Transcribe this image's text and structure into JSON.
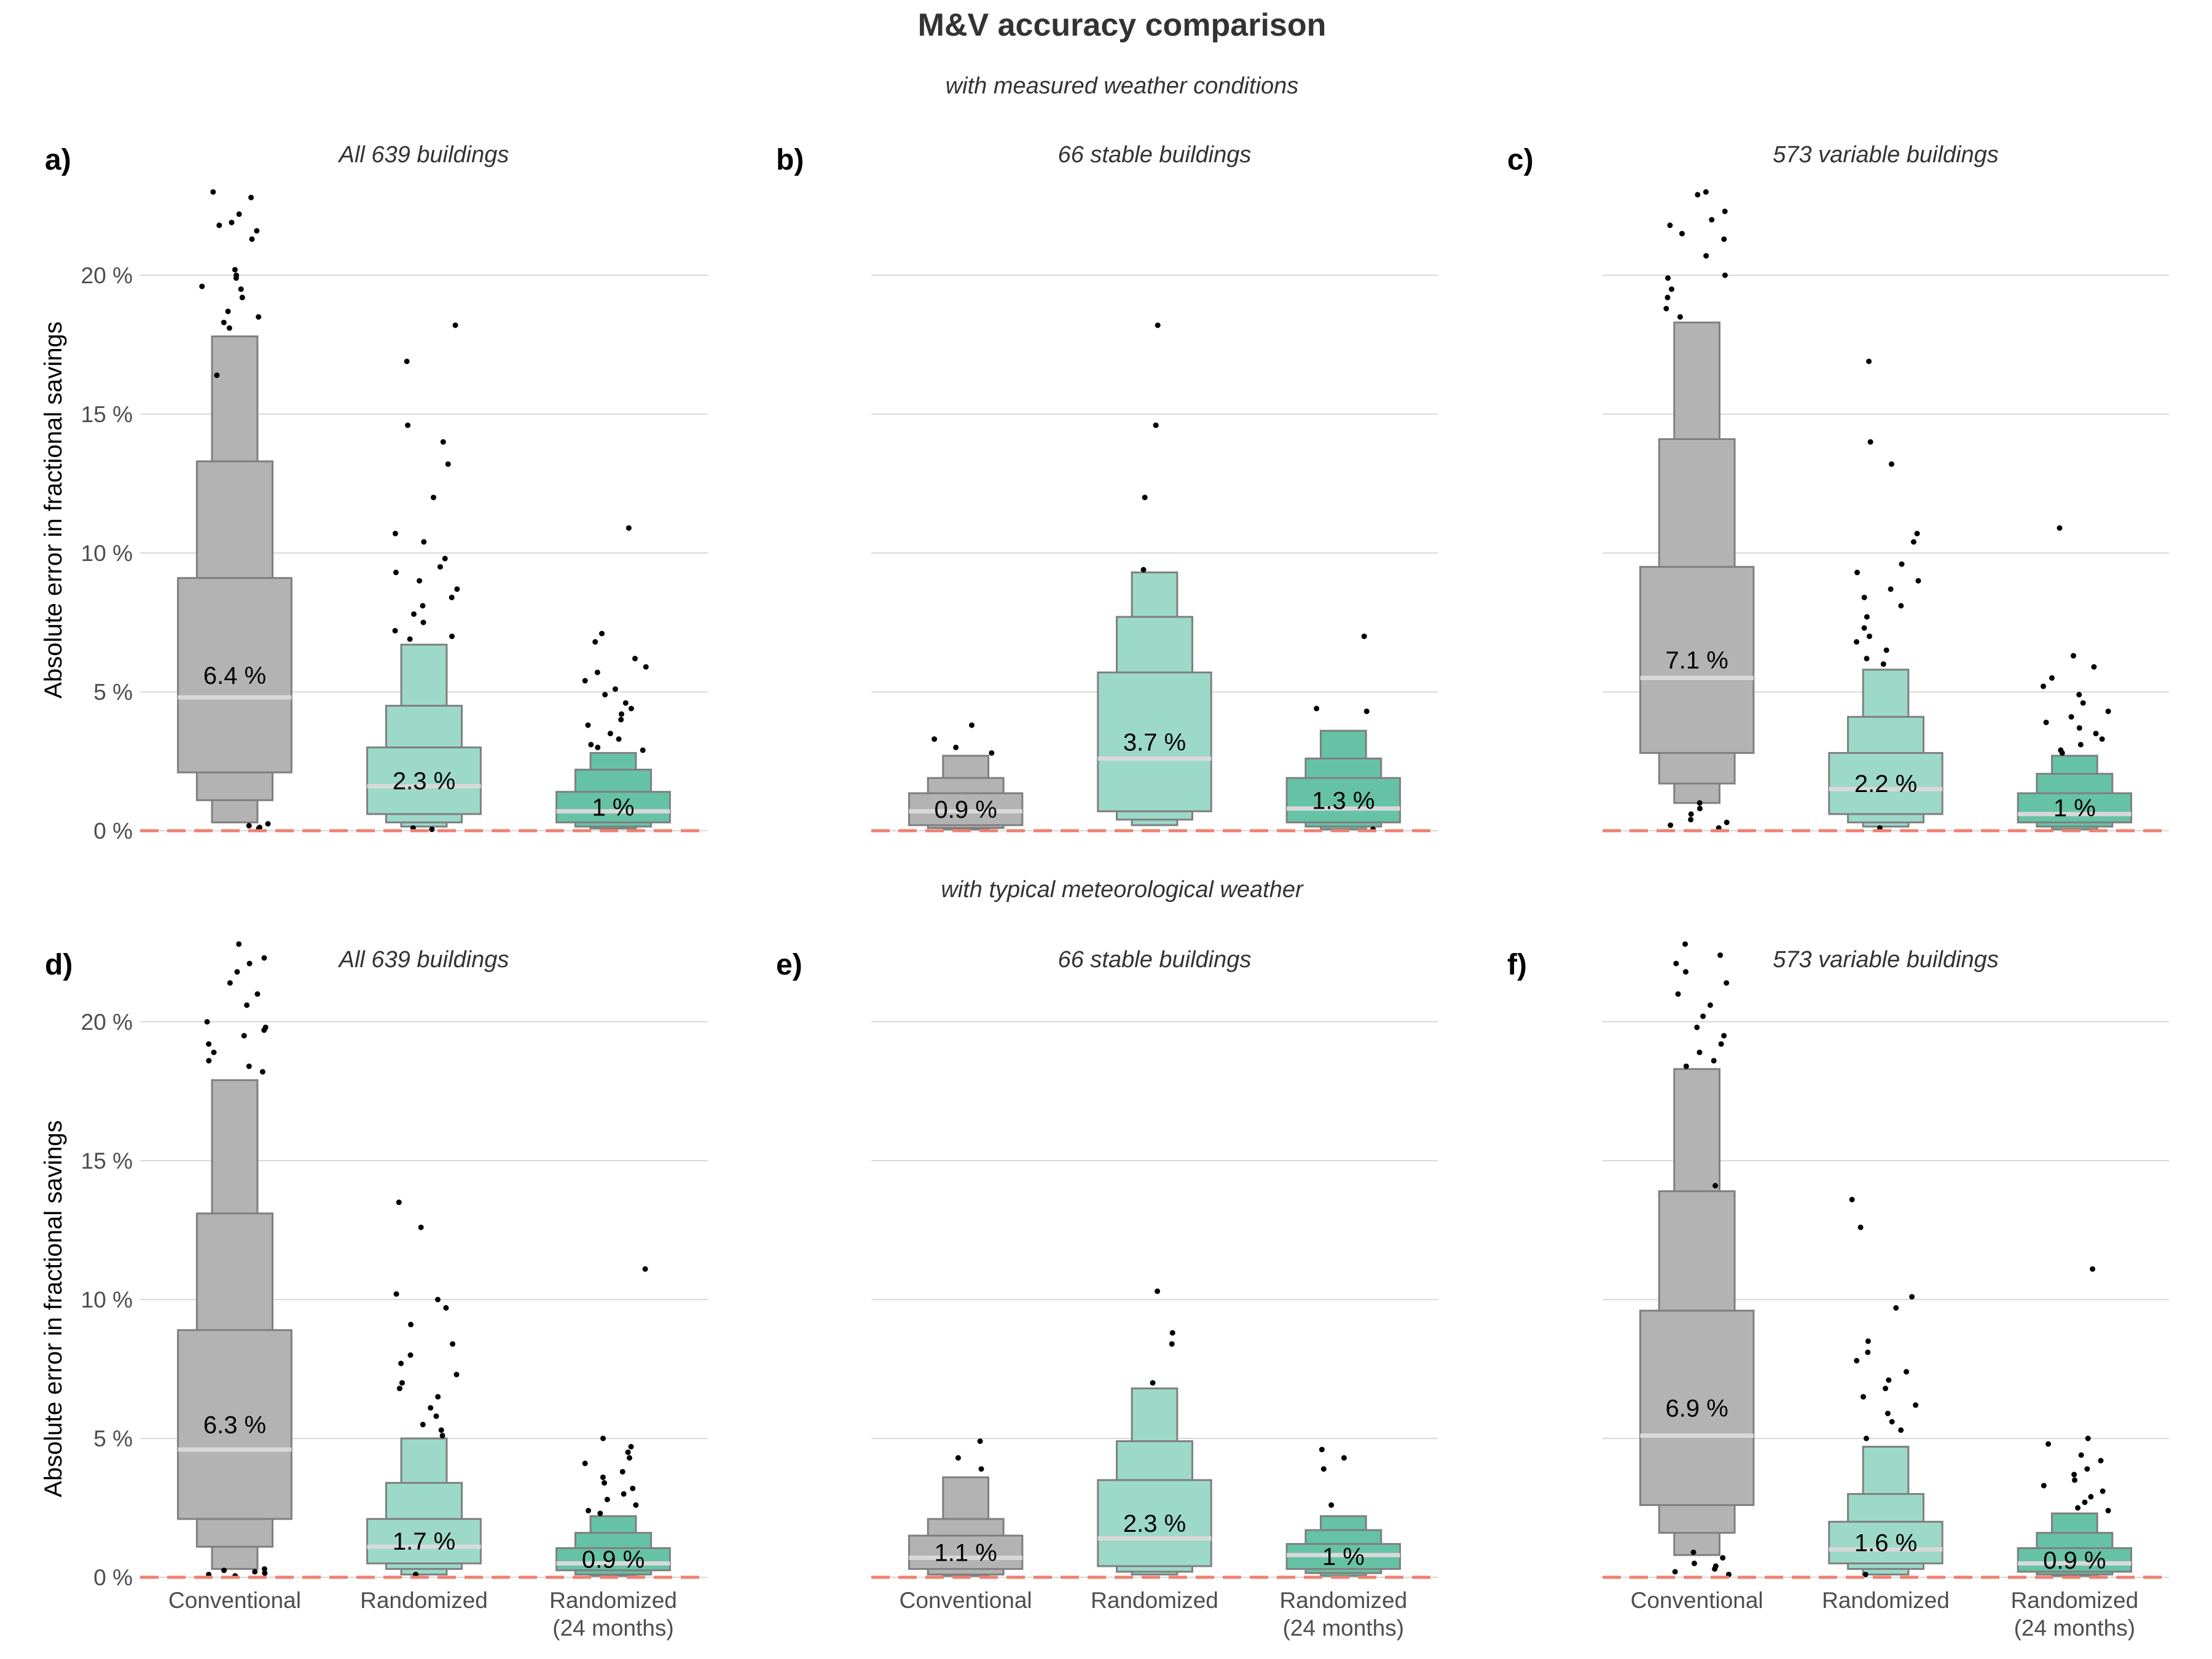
{
  "title": "M&V accuracy comparison",
  "row_subtitles": [
    "with measured weather conditions",
    "with typical meteorological weather"
  ],
  "ylabel": "Absolute error in fractional savings",
  "colors": {
    "conventional": "#b3b3b3",
    "randomized_light": "#9cd9c8",
    "randomized_dark": "#66c2a5",
    "box_border": "#7f7f7f",
    "median_line": "#d9d9d9",
    "reference_line": "#f08070",
    "grid": "#d9d9d9",
    "points": "#000000"
  },
  "chart_data": [
    {
      "type": "boxen",
      "panel": "a)",
      "title": "All 639 buildings",
      "row_subtitle": "with measured weather conditions",
      "categories": [
        "Conventional",
        "Randomized",
        "Randomized\n(24 months)"
      ],
      "ylim": [
        0,
        23
      ],
      "yticks": [
        0,
        5,
        10,
        15,
        20
      ],
      "ytick_labels": [
        "0 %",
        "5 %",
        "10 %",
        "15 %",
        "20 %"
      ],
      "grid": true,
      "reference_line": 0,
      "series": [
        {
          "median": 4.8,
          "median_label": "6.4 %",
          "levels": [
            [
              2.1,
              9.1
            ],
            [
              1.1,
              13.3
            ],
            [
              0.3,
              17.8
            ]
          ],
          "outliers": [
            23.0,
            22.8,
            22.2,
            21.9,
            21.8,
            21.6,
            21.3,
            20.2,
            20.0,
            19.9,
            19.6,
            19.5,
            19.2,
            18.7,
            18.5,
            18.3,
            18.1,
            16.4,
            0.25,
            0.18,
            0.12,
            0.08
          ]
        },
        {
          "median": 1.6,
          "median_label": "2.3 %",
          "levels": [
            [
              0.6,
              3.0
            ],
            [
              0.3,
              4.5
            ],
            [
              0.15,
              6.7
            ]
          ],
          "outliers": [
            18.2,
            16.9,
            14.6,
            14.0,
            13.2,
            12.0,
            10.7,
            10.4,
            9.8,
            9.5,
            9.3,
            9.0,
            8.7,
            8.4,
            8.1,
            7.8,
            7.5,
            7.2,
            7.0,
            6.9,
            0.1,
            0.05
          ]
        },
        {
          "median": 0.7,
          "median_label": "1 %",
          "levels": [
            [
              0.3,
              1.4
            ],
            [
              0.15,
              2.2
            ],
            [
              0.08,
              2.8
            ]
          ],
          "outliers": [
            10.9,
            7.1,
            6.8,
            6.2,
            5.9,
            5.7,
            5.4,
            5.1,
            4.9,
            4.6,
            4.4,
            4.2,
            4.0,
            3.8,
            3.5,
            3.3,
            3.1,
            3.0,
            2.9
          ]
        }
      ]
    },
    {
      "type": "boxen",
      "panel": "b)",
      "title": "66 stable buildings",
      "row_subtitle": "with measured weather conditions",
      "categories": [
        "Conventional",
        "Randomized",
        "Randomized\n(24 months)"
      ],
      "ylim": [
        0,
        23
      ],
      "grid": true,
      "reference_line": 0,
      "series": [
        {
          "median": 0.7,
          "median_label": "0.9 %",
          "levels": [
            [
              0.2,
              1.35
            ],
            [
              0.1,
              1.9
            ],
            [
              0.05,
              2.7
            ]
          ],
          "outliers": [
            3.8,
            3.3,
            3.0,
            2.8
          ]
        },
        {
          "median": 2.6,
          "median_label": "3.7 %",
          "levels": [
            [
              0.7,
              5.7
            ],
            [
              0.4,
              7.7
            ],
            [
              0.2,
              9.3
            ]
          ],
          "outliers": [
            18.2,
            14.6,
            12.0,
            9.4
          ]
        },
        {
          "median": 0.8,
          "median_label": "1.3 %",
          "levels": [
            [
              0.3,
              1.9
            ],
            [
              0.15,
              2.6
            ],
            [
              0.05,
              3.6
            ]
          ],
          "outliers": [
            7.0,
            4.4,
            4.3,
            0.05
          ]
        }
      ]
    },
    {
      "type": "boxen",
      "panel": "c)",
      "title": "573 variable buildings",
      "row_subtitle": "with measured weather conditions",
      "categories": [
        "Conventional",
        "Randomized",
        "Randomized\n(24 months)"
      ],
      "ylim": [
        0,
        23
      ],
      "grid": true,
      "reference_line": 0,
      "series": [
        {
          "median": 5.5,
          "median_label": "7.1 %",
          "levels": [
            [
              2.8,
              9.5
            ],
            [
              1.7,
              14.1
            ],
            [
              1.0,
              18.3
            ]
          ],
          "outliers": [
            23.0,
            22.9,
            22.3,
            22.0,
            21.8,
            21.5,
            21.3,
            20.7,
            20.0,
            19.9,
            19.5,
            19.2,
            18.8,
            18.5,
            1.0,
            0.8,
            0.6,
            0.4,
            0.3,
            0.2,
            0.1
          ]
        },
        {
          "median": 1.5,
          "median_label": "2.2 %",
          "levels": [
            [
              0.6,
              2.8
            ],
            [
              0.3,
              4.1
            ],
            [
              0.15,
              5.8
            ]
          ],
          "outliers": [
            16.9,
            14.0,
            13.2,
            10.7,
            10.4,
            9.6,
            9.3,
            9.0,
            8.7,
            8.4,
            8.1,
            7.7,
            7.3,
            7.0,
            6.8,
            6.5,
            6.2,
            6.0,
            0.1
          ]
        },
        {
          "median": 0.6,
          "median_label": "1 %",
          "levels": [
            [
              0.3,
              1.35
            ],
            [
              0.15,
              2.05
            ],
            [
              0.05,
              2.7
            ]
          ],
          "outliers": [
            10.9,
            6.3,
            5.9,
            5.5,
            5.2,
            4.9,
            4.6,
            4.3,
            4.1,
            3.9,
            3.7,
            3.5,
            3.3,
            3.1,
            2.9,
            2.8
          ]
        }
      ]
    },
    {
      "type": "boxen",
      "panel": "d)",
      "title": "All 639 buildings",
      "row_subtitle": "with typical meteorological weather",
      "categories": [
        "Conventional",
        "Randomized",
        "Randomized\n(24 months)"
      ],
      "ylim": [
        0,
        23
      ],
      "yticks": [
        0,
        5,
        10,
        15,
        20
      ],
      "ytick_labels": [
        "0 %",
        "5 %",
        "10 %",
        "15 %",
        "20 %"
      ],
      "grid": true,
      "reference_line": 0,
      "series": [
        {
          "median": 4.6,
          "median_label": "6.3 %",
          "levels": [
            [
              2.1,
              8.9
            ],
            [
              1.1,
              13.1
            ],
            [
              0.3,
              17.9
            ]
          ],
          "outliers": [
            22.8,
            22.3,
            22.1,
            21.8,
            21.4,
            21.0,
            20.6,
            20.0,
            19.8,
            19.7,
            19.5,
            19.2,
            18.9,
            18.6,
            18.4,
            18.2,
            0.3,
            0.25,
            0.2,
            0.15,
            0.1,
            0.05
          ]
        },
        {
          "median": 1.1,
          "median_label": "1.7 %",
          "levels": [
            [
              0.5,
              2.1
            ],
            [
              0.3,
              3.4
            ],
            [
              0.1,
              5.0
            ]
          ],
          "outliers": [
            13.5,
            12.6,
            10.2,
            10.0,
            9.7,
            9.1,
            8.4,
            8.0,
            7.7,
            7.3,
            7.0,
            6.8,
            6.5,
            6.1,
            5.8,
            5.5,
            5.3,
            5.1,
            0.1
          ]
        },
        {
          "median": 0.5,
          "median_label": "0.9 %",
          "levels": [
            [
              0.25,
              1.05
            ],
            [
              0.1,
              1.6
            ],
            [
              0.05,
              2.2
            ]
          ],
          "outliers": [
            11.1,
            5.0,
            4.7,
            4.5,
            4.3,
            4.1,
            3.8,
            3.6,
            3.4,
            3.2,
            3.0,
            2.8,
            2.6,
            2.4,
            2.3
          ]
        }
      ]
    },
    {
      "type": "boxen",
      "panel": "e)",
      "title": "66 stable buildings",
      "row_subtitle": "with typical meteorological weather",
      "categories": [
        "Conventional",
        "Randomized",
        "Randomized\n(24 months)"
      ],
      "ylim": [
        0,
        23
      ],
      "grid": true,
      "reference_line": 0,
      "series": [
        {
          "median": 0.7,
          "median_label": "1.1 %",
          "levels": [
            [
              0.3,
              1.5
            ],
            [
              0.1,
              2.1
            ],
            [
              0.05,
              3.6
            ]
          ],
          "outliers": [
            4.9,
            4.3,
            3.9
          ]
        },
        {
          "median": 1.4,
          "median_label": "2.3 %",
          "levels": [
            [
              0.4,
              3.5
            ],
            [
              0.2,
              4.9
            ],
            [
              0.1,
              6.8
            ]
          ],
          "outliers": [
            10.3,
            8.8,
            8.4,
            7.0
          ]
        },
        {
          "median": 0.8,
          "median_label": "1 %",
          "levels": [
            [
              0.3,
              1.2
            ],
            [
              0.15,
              1.7
            ],
            [
              0.05,
              2.2
            ]
          ],
          "outliers": [
            4.6,
            4.3,
            3.9,
            2.6
          ]
        }
      ]
    },
    {
      "type": "boxen",
      "panel": "f)",
      "title": "573 variable buildings",
      "row_subtitle": "with typical meteorological weather",
      "categories": [
        "Conventional",
        "Randomized",
        "Randomized\n(24 months)"
      ],
      "ylim": [
        0,
        23
      ],
      "grid": true,
      "reference_line": 0,
      "series": [
        {
          "median": 5.1,
          "median_label": "6.9 %",
          "levels": [
            [
              2.6,
              9.6
            ],
            [
              1.6,
              13.9
            ],
            [
              0.8,
              18.3
            ]
          ],
          "outliers": [
            22.8,
            22.4,
            22.1,
            21.8,
            21.4,
            21.0,
            20.6,
            20.2,
            19.8,
            19.5,
            19.2,
            18.9,
            18.6,
            18.4,
            14.1,
            0.9,
            0.7,
            0.5,
            0.4,
            0.3,
            0.2,
            0.1
          ]
        },
        {
          "median": 1.0,
          "median_label": "1.6 %",
          "levels": [
            [
              0.5,
              2.0
            ],
            [
              0.3,
              3.0
            ],
            [
              0.1,
              4.7
            ]
          ],
          "outliers": [
            13.6,
            12.6,
            10.1,
            9.7,
            8.5,
            8.1,
            7.8,
            7.4,
            7.1,
            6.8,
            6.5,
            6.2,
            5.9,
            5.6,
            5.3,
            5.0,
            0.1
          ]
        },
        {
          "median": 0.5,
          "median_label": "0.9 %",
          "levels": [
            [
              0.2,
              1.05
            ],
            [
              0.1,
              1.6
            ],
            [
              0.05,
              2.3
            ]
          ],
          "outliers": [
            11.1,
            5.0,
            4.8,
            4.4,
            4.2,
            3.9,
            3.7,
            3.5,
            3.3,
            3.1,
            2.9,
            2.7,
            2.5,
            2.4
          ]
        }
      ]
    }
  ]
}
